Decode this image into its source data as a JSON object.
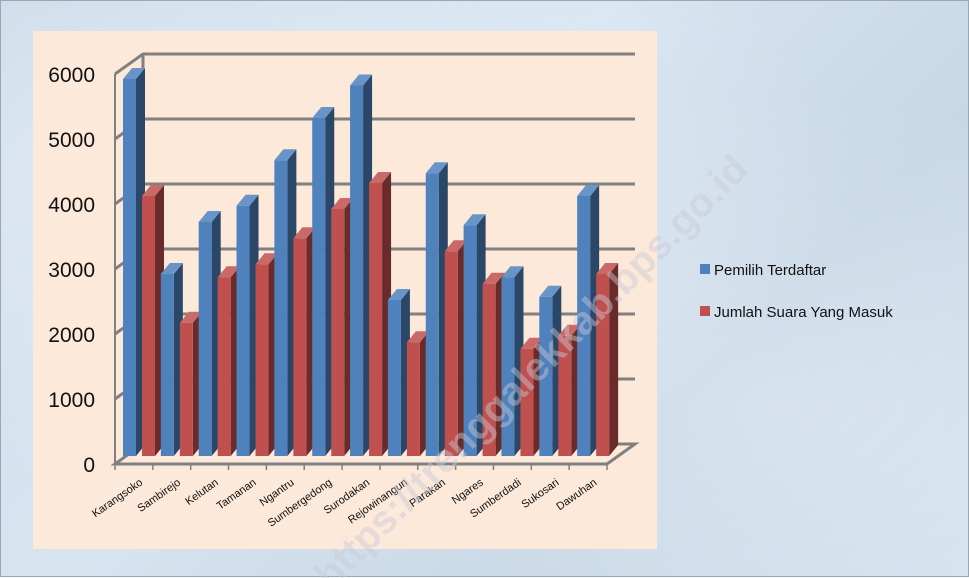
{
  "chart_data": {
    "type": "bar",
    "categories": [
      "Karangsoko",
      "Sambirejo",
      "Kelutan",
      "Tamanan",
      "Ngantru",
      "Sumbergedong",
      "Surodakan",
      "Rejowinangun",
      "Parakan",
      "Ngares",
      "Sumberdadi",
      "Sukosari",
      "Dawuhan"
    ],
    "series": [
      {
        "name": "Pemilih Terdaftar",
        "color": "#4f81bd",
        "values": [
          5800,
          2800,
          3600,
          3850,
          4550,
          5200,
          5700,
          2400,
          4350,
          3550,
          2750,
          2450,
          4000
        ]
      },
      {
        "name": "Jumlah Suara Yang Masuk",
        "color": "#c0504d",
        "values": [
          4000,
          2050,
          2750,
          2950,
          3350,
          3800,
          4200,
          1750,
          3150,
          2650,
          1650,
          1850,
          2800
        ]
      }
    ],
    "yticks": [
      "0",
      "1000",
      "2000",
      "3000",
      "4000",
      "5000",
      "6000"
    ],
    "ylim": [
      0,
      6000
    ],
    "grid": true,
    "legend_position": "right",
    "title": "",
    "xlabel": "",
    "ylabel": "",
    "watermark": "https://trenggalekkab.bps.go.id"
  }
}
